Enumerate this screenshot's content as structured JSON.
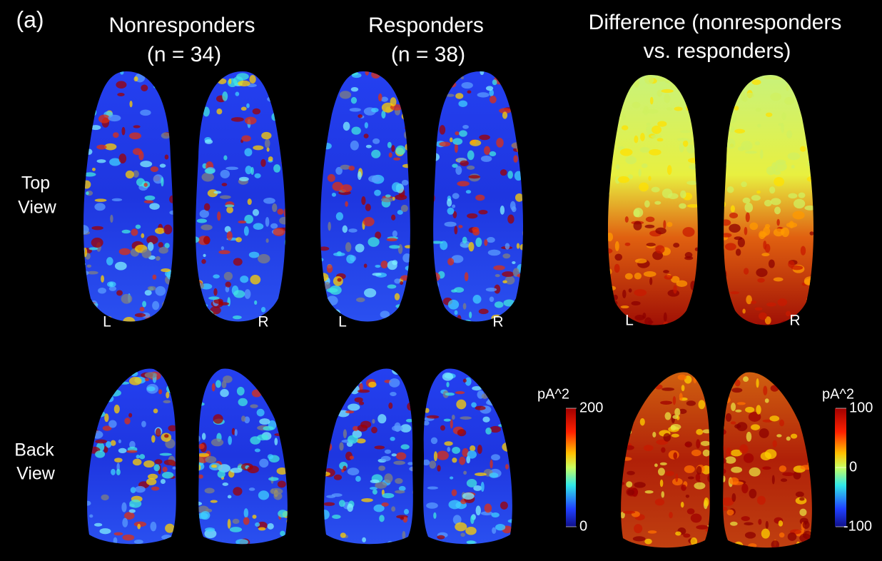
{
  "panel_label": "(a)",
  "columns": [
    {
      "title": [
        "Nonresponders",
        "(n = 34)"
      ]
    },
    {
      "title": [
        "Responders",
        "(n = 38)"
      ]
    },
    {
      "title": [
        "Difference (nonresponders",
        "vs. responders)"
      ]
    }
  ],
  "rows": [
    {
      "label": [
        "Top",
        "View"
      ]
    },
    {
      "label": [
        "Back",
        "View"
      ]
    }
  ],
  "side_labels": {
    "left": "L",
    "right": "R"
  },
  "colorbars": [
    {
      "unit": "pA^2",
      "ticks": [
        200,
        0
      ]
    },
    {
      "unit": "pA^2",
      "ticks": [
        100,
        0,
        -100
      ]
    }
  ]
}
